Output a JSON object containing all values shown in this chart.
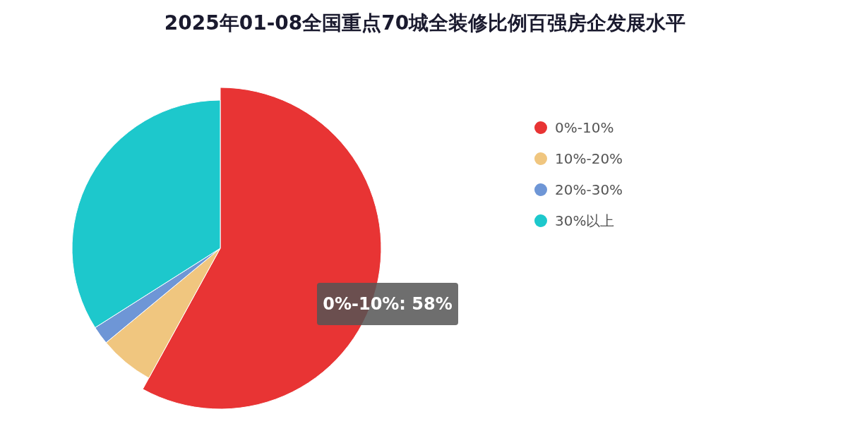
{
  "chart_data": {
    "type": "pie",
    "title": "2025年01-08全国重点70城全装修比例百强房企发展水平",
    "categories": [
      "0%-10%",
      "10%-20%",
      "20%-30%",
      "30%以上"
    ],
    "values": [
      58,
      6,
      2,
      34
    ],
    "colors": [
      "#e83434",
      "#f0c67f",
      "#6e96d6",
      "#1dc8cc"
    ],
    "legend": "right",
    "annotations": [
      {
        "text": "0%-10%: 58%",
        "x": "0%-10%"
      }
    ]
  }
}
